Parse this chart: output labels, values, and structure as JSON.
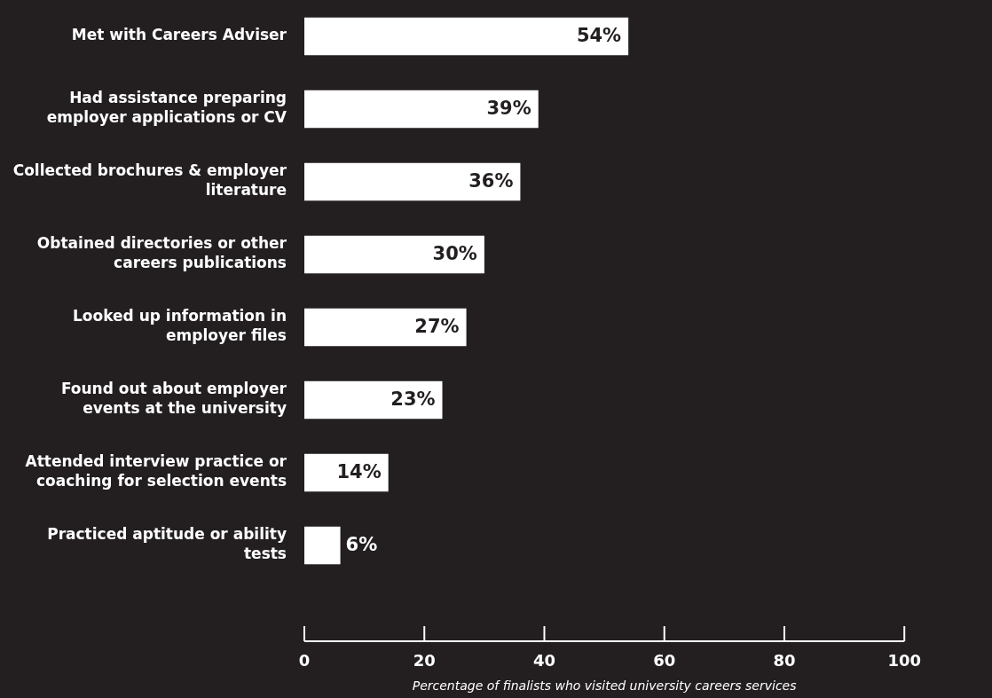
{
  "chart_data": {
    "type": "bar",
    "orientation": "horizontal",
    "categories": [
      "Met with Careers Adviser",
      "Had assistance preparing employer applications or CV",
      "Collected brochures & employer literature",
      "Obtained directories or other careers publications",
      "Looked up information in employer files",
      "Found out about employer events at the university",
      "Attended interview practice or coaching for selection events",
      "Practiced aptitude or ability tests"
    ],
    "values": [
      54,
      39,
      36,
      30,
      27,
      23,
      14,
      6
    ],
    "value_labels": [
      "54%",
      "39%",
      "36%",
      "30%",
      "27%",
      "23%",
      "14%",
      "6%"
    ],
    "color": "#ffffff",
    "xlim": [
      0,
      100
    ],
    "xticks": [
      0,
      20,
      40,
      60,
      80,
      100
    ],
    "xlabel": "Percentage of finalists who visited university careers services",
    "grid": false,
    "legend": false
  }
}
